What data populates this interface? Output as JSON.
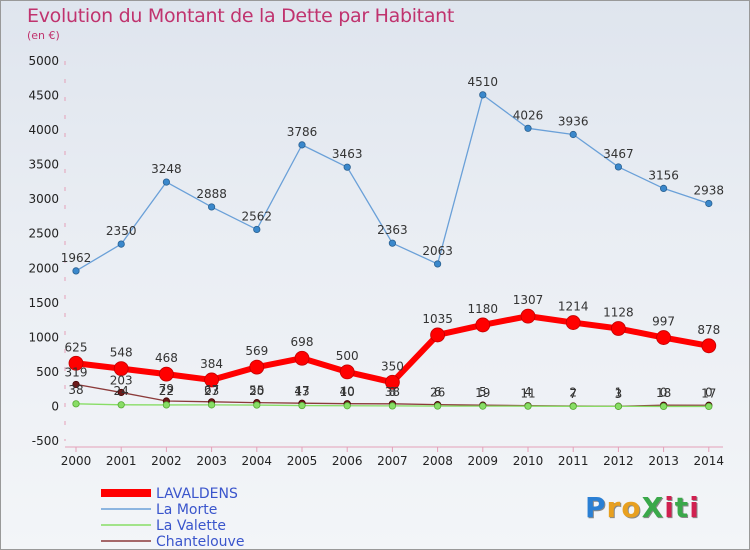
{
  "title": "Evolution du Montant de la Dette par Habitant",
  "unit": "(en €)",
  "logo": {
    "text": "ProXiti",
    "colors": [
      "#2a7fd4",
      "#e8a020",
      "#e8a020",
      "#3aa84a",
      "#d02050",
      "#3aa84a",
      "#d02050"
    ]
  },
  "chart_data": {
    "type": "line",
    "categories": [
      "2000",
      "2001",
      "2002",
      "2003",
      "2004",
      "2005",
      "2006",
      "2007",
      "2008",
      "2009",
      "2010",
      "2011",
      "2012",
      "2013",
      "2014"
    ],
    "ylim": [
      -500,
      5000
    ],
    "yticks": [
      -500,
      0,
      500,
      1000,
      1500,
      2000,
      2500,
      3000,
      3500,
      4000,
      4500,
      5000
    ],
    "grid": false,
    "legend_placement": "bottom-left",
    "series": [
      {
        "name": "LAVALDENS",
        "color": "#ff0000",
        "values": [
          625,
          548,
          468,
          384,
          569,
          698,
          500,
          350,
          1035,
          1180,
          1307,
          1214,
          1128,
          997,
          878
        ]
      },
      {
        "name": "La Morte",
        "color": "#6aa0d8",
        "values": [
          1962,
          2350,
          3248,
          2888,
          2562,
          3786,
          3463,
          2363,
          2063,
          4510,
          4026,
          3936,
          3467,
          3156,
          2938
        ]
      },
      {
        "name": "La Valette",
        "color": "#88dd66",
        "values": [
          38,
          24,
          22,
          23,
          20,
          13,
          10,
          8,
          6,
          5,
          4,
          2,
          1,
          0,
          0
        ]
      },
      {
        "name": "Chantelouve",
        "color": "#8b3a3a",
        "values": [
          319,
          203,
          79,
          67,
          55,
          47,
          40,
          38,
          26,
          19,
          11,
          7,
          3,
          18,
          17
        ]
      }
    ]
  }
}
